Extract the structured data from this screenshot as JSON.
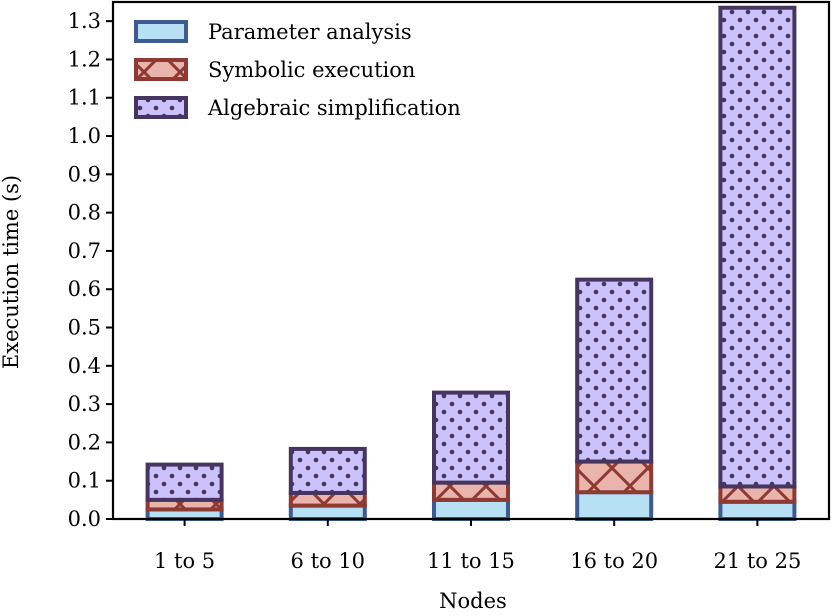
{
  "chart_data": {
    "type": "bar",
    "stacked": true,
    "categories": [
      "1 to 5",
      "6 to 10",
      "11 to 15",
      "16 to 20",
      "21 to 25"
    ],
    "series": [
      {
        "name": "Parameter analysis",
        "values": [
          0.025,
          0.035,
          0.05,
          0.07,
          0.045
        ],
        "fill": "#b8e0f5",
        "edge": "#3f5a8f",
        "hatch": "none"
      },
      {
        "name": "Symbolic execution",
        "values": [
          0.025,
          0.033,
          0.045,
          0.08,
          0.04
        ],
        "fill": "#e9b4ac",
        "edge": "#8e3a32",
        "hatch": "x"
      },
      {
        "name": "Algebraic simplification",
        "values": [
          0.092,
          0.115,
          0.235,
          0.475,
          1.25
        ],
        "fill": "#ccc2fb",
        "edge": "#46365f",
        "hatch": "dots"
      }
    ],
    "title": "",
    "xlabel": "Nodes",
    "ylabel": "Execution time (s)",
    "ylim": [
      0,
      1.35
    ],
    "yticks": [
      "0.0",
      "0.1",
      "0.2",
      "0.3",
      "0.4",
      "0.5",
      "0.6",
      "0.7",
      "0.8",
      "0.9",
      "1.0",
      "1.1",
      "1.2",
      "1.3"
    ],
    "legend_position": "top-left",
    "grid": false
  }
}
